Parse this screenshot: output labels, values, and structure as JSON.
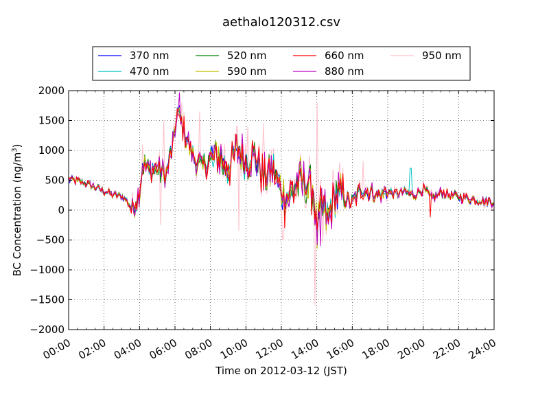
{
  "chart_data": {
    "type": "line",
    "title": "aethalo120312.csv",
    "xlabel": "Time on 2012-03-12 (JST)",
    "ylabel_main": "BC Concentration (ng/m",
    "ylabel_sup": "3",
    "ylabel_tail": ")",
    "xlim": [
      "00:00",
      "24:00"
    ],
    "ylim": [
      -2000,
      2000
    ],
    "x_ticks": [
      "00:00",
      "02:00",
      "04:00",
      "06:00",
      "08:00",
      "10:00",
      "12:00",
      "14:00",
      "16:00",
      "18:00",
      "20:00",
      "22:00",
      "24:00"
    ],
    "y_ticks": [
      "2000",
      "1500",
      "1000",
      "500",
      "0",
      "−500",
      "−1000",
      "−1500",
      "−2000"
    ],
    "grid": true,
    "legend_position": "top-center",
    "x_unit": "hours",
    "series": [
      {
        "name": "370 nm",
        "color": "#0000ff"
      },
      {
        "name": "470 nm",
        "color": "#00bfbf"
      },
      {
        "name": "520 nm",
        "color": "#008000"
      },
      {
        "name": "590 nm",
        "color": "#bfbf00"
      },
      {
        "name": "660 nm",
        "color": "#ff0000"
      },
      {
        "name": "880 nm",
        "color": "#bf00bf"
      },
      {
        "name": "950 nm",
        "color": "#ffc0cb"
      }
    ],
    "base_profile": {
      "x": [
        0,
        0.5,
        1,
        1.5,
        2,
        2.5,
        3,
        3.3,
        3.6,
        4,
        4.2,
        4.5,
        5,
        5.5,
        6,
        6.1,
        6.3,
        6.6,
        7,
        7.5,
        8,
        8.5,
        9,
        9.5,
        10,
        10.5,
        11,
        11.5,
        12,
        12.5,
        13,
        13.5,
        13.8,
        14,
        14.3,
        14.6,
        15,
        15.5,
        16,
        16.5,
        17,
        17.5,
        18,
        18.5,
        19,
        19.5,
        20,
        20.5,
        21,
        21.5,
        22,
        22.5,
        23,
        23.5,
        24
      ],
      "y": [
        520,
        480,
        450,
        380,
        320,
        260,
        230,
        150,
        0,
        300,
        800,
        650,
        700,
        550,
        1300,
        1650,
        1500,
        1250,
        900,
        700,
        850,
        900,
        700,
        1000,
        850,
        900,
        550,
        700,
        300,
        250,
        500,
        400,
        300,
        -400,
        100,
        -200,
        300,
        200,
        100,
        350,
        300,
        250,
        300,
        280,
        300,
        250,
        350,
        200,
        300,
        250,
        220,
        200,
        180,
        150,
        150
      ]
    },
    "spikes": [
      {
        "x": 4.15,
        "series": "950 nm",
        "y": 1100
      },
      {
        "x": 5.2,
        "series": "950 nm",
        "y": -250
      },
      {
        "x": 5.35,
        "series": "950 nm",
        "y": 1500
      },
      {
        "x": 6.25,
        "series": "880 nm",
        "y": 1970
      },
      {
        "x": 6.4,
        "series": "950 nm",
        "y": 1800
      },
      {
        "x": 7.4,
        "series": "950 nm",
        "y": 1650
      },
      {
        "x": 9.5,
        "series": "950 nm",
        "y": 1400
      },
      {
        "x": 9.6,
        "series": "950 nm",
        "y": -350
      },
      {
        "x": 10.1,
        "series": "950 nm",
        "y": 1400
      },
      {
        "x": 11.0,
        "series": "950 nm",
        "y": 1450
      },
      {
        "x": 12.1,
        "series": "950 nm",
        "y": -500
      },
      {
        "x": 12.2,
        "series": "660 nm",
        "y": -300
      },
      {
        "x": 13.9,
        "series": "950 nm",
        "y": -1600
      },
      {
        "x": 14.0,
        "series": "950 nm",
        "y": 1800
      },
      {
        "x": 14.2,
        "series": "880 nm",
        "y": -600
      },
      {
        "x": 14.35,
        "series": "950 nm",
        "y": -550
      },
      {
        "x": 15.3,
        "series": "950 nm",
        "y": 800
      },
      {
        "x": 16.6,
        "series": "950 nm",
        "y": 820
      },
      {
        "x": 19.3,
        "series": "470 nm",
        "y": 700
      },
      {
        "x": 20.4,
        "series": "660 nm",
        "y": -120
      },
      {
        "x": 23.5,
        "series": "950 nm",
        "y": 60
      }
    ]
  }
}
